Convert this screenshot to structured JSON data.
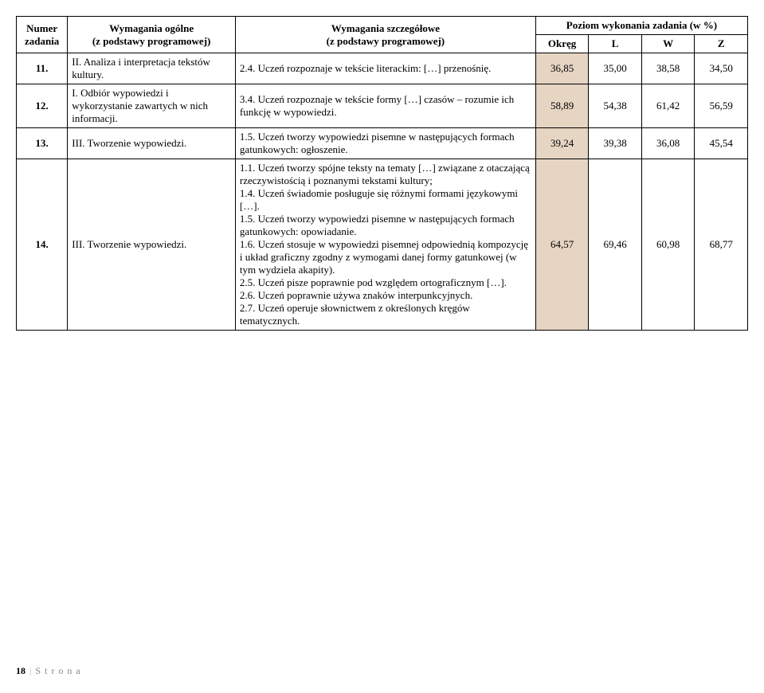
{
  "header": {
    "col_numer_1": "Numer",
    "col_numer_2": "zadania",
    "col_ogolne_1": "Wymagania ogólne",
    "col_ogolne_2": "(z podstawy programowej)",
    "col_szczeg_1": "Wymagania szczegółowe",
    "col_szczeg_2": "(z podstawy programowej)",
    "col_poziom": "Poziom wykonania zadania (w %)",
    "sub_okreg": "Okręg",
    "sub_l": "L",
    "sub_w": "W",
    "sub_z": "Z"
  },
  "rows": [
    {
      "num": "11.",
      "gen": "II. Analiza i interpretacja tekstów kultury.",
      "det": "2.4. Uczeń rozpoznaje w tekście literackim: […] przenośnię.",
      "okreg": "36,85",
      "l": "35,00",
      "w": "38,58",
      "z": "34,50"
    },
    {
      "num": "12.",
      "gen": "I. Odbiór wypowiedzi i wykorzystanie zawartych w nich informacji.",
      "det": "3.4. Uczeń rozpoznaje w tekście formy […] czasów – rozumie ich funkcję w wypowiedzi.",
      "okreg": "58,89",
      "l": "54,38",
      "w": "61,42",
      "z": "56,59"
    },
    {
      "num": "13.",
      "gen": "III. Tworzenie wypowiedzi.",
      "det": "1.5. Uczeń tworzy wypowiedzi pisemne w następujących formach gatunkowych: ogłoszenie.",
      "okreg": "39,24",
      "l": "39,38",
      "w": "36,08",
      "z": "45,54"
    },
    {
      "num": "14.",
      "gen": "III. Tworzenie wypowiedzi.",
      "det_lines": [
        "1.1. Uczeń tworzy spójne teksty na tematy […] związane z otaczającą rzeczywistością i poznanymi tekstami kultury;",
        "1.4. Uczeń świadomie posługuje się różnymi formami językowymi […].",
        "1.5. Uczeń tworzy wypowiedzi pisemne w następujących formach gatunkowych: opowiadanie.",
        "1.6. Uczeń stosuje w wypowiedzi pisemnej odpowiednią kompozycję i układ graficzny zgodny z wymogami danej formy gatunkowej (w tym wydziela akapity).",
        "2.5. Uczeń pisze poprawnie pod względem ortograficznym […].",
        "2.6. Uczeń poprawnie używa znaków interpunkcyjnych.",
        "2.7. Uczeń operuje słownictwem z określonych kręgów tematycznych."
      ],
      "okreg": "64,57",
      "l": "69,46",
      "w": "60,98",
      "z": "68,77"
    }
  ],
  "footer": {
    "page": "18",
    "label": "S t r o n a"
  }
}
